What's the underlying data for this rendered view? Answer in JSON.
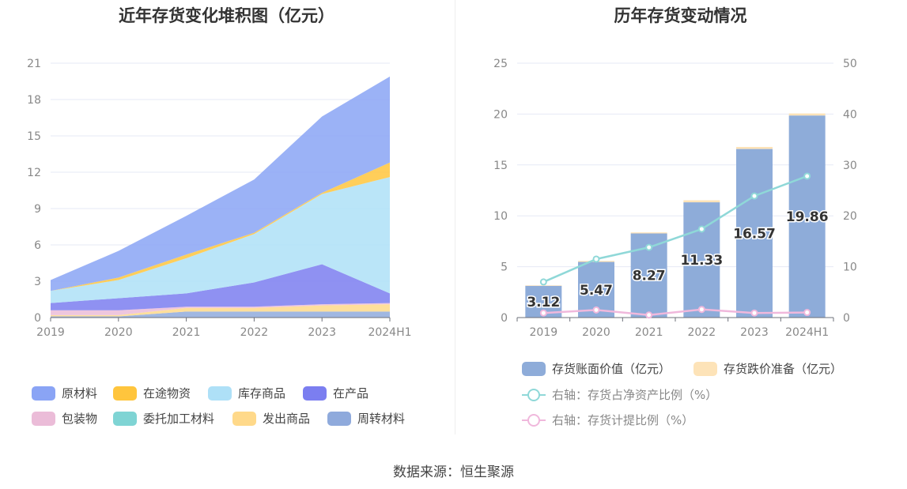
{
  "left_title": "近年存货变化堆积图（亿元）",
  "right_title": "历年存货变动情况",
  "source": "数据来源：恒生聚源",
  "chart_data": [
    {
      "type": "area",
      "stacked": true,
      "title": "近年存货变化堆积图（亿元）",
      "categories": [
        "2019",
        "2020",
        "2021",
        "2022",
        "2023",
        "2024H1"
      ],
      "y_ticks": [
        "0",
        "3",
        "6",
        "9",
        "12",
        "15",
        "18",
        "21"
      ],
      "ylim": [
        0,
        21
      ],
      "grid": true,
      "legend_placement": "bottom",
      "series": [
        {
          "name": "周转材料",
          "color": "#8faadc",
          "values": [
            0.1,
            0.1,
            0.5,
            0.5,
            0.5,
            0.5
          ]
        },
        {
          "name": "发出商品",
          "color": "#ffd98a",
          "values": [
            0.1,
            0.1,
            0.3,
            0.3,
            0.5,
            0.6
          ]
        },
        {
          "name": "委托加工材料",
          "color": "#7fd4d4",
          "values": [
            0.0,
            0.0,
            0.0,
            0.0,
            0.0,
            0.0
          ]
        },
        {
          "name": "包装物",
          "color": "#ebbcd8",
          "values": [
            0.4,
            0.4,
            0.1,
            0.1,
            0.1,
            0.1
          ]
        },
        {
          "name": "在产品",
          "color": "#7b7ef0",
          "values": [
            0.6,
            1.0,
            1.1,
            2.0,
            3.3,
            0.8
          ]
        },
        {
          "name": "库存商品",
          "color": "#aee0f7",
          "values": [
            1.0,
            1.5,
            2.9,
            4.0,
            5.8,
            9.6
          ]
        },
        {
          "name": "在途物资",
          "color": "#ffc53d",
          "values": [
            0.0,
            0.2,
            0.3,
            0.1,
            0.1,
            1.2
          ]
        },
        {
          "name": "原材料",
          "color": "#8aa4f5",
          "values": [
            0.9,
            2.2,
            3.2,
            4.4,
            6.3,
            7.1
          ]
        }
      ],
      "legend": [
        "原材料",
        "在途物资",
        "库存商品",
        "在产品",
        "包装物",
        "委托加工材料",
        "发出商品",
        "周转材料"
      ]
    },
    {
      "type": "bar",
      "stacked": true,
      "title": "历年存货变动情况",
      "categories": [
        "2019",
        "2020",
        "2021",
        "2022",
        "2023",
        "2024H1"
      ],
      "ylim": [
        0,
        25
      ],
      "y_ticks": [
        "0",
        "5",
        "10",
        "15",
        "20",
        "25"
      ],
      "y2lim": [
        0,
        50
      ],
      "y2_ticks": [
        "0",
        "10",
        "20",
        "30",
        "40",
        "50"
      ],
      "grid": true,
      "legend_placement": "bottom",
      "series": [
        {
          "name": "存货账面价值（亿元）",
          "axis": "left",
          "kind": "bar",
          "color": "#8eacd9",
          "values": [
            3.12,
            5.47,
            8.27,
            11.33,
            16.57,
            19.86
          ],
          "labels": [
            "3.12",
            "5.47",
            "8.27",
            "11.33",
            "16.57",
            "19.86"
          ]
        },
        {
          "name": "存货跌价准备（亿元）",
          "axis": "left",
          "kind": "bar",
          "color": "#fde3b8",
          "values": [
            0.05,
            0.1,
            0.1,
            0.2,
            0.2,
            0.2
          ]
        },
        {
          "name": "右轴：存货占净资产比例（%）",
          "axis": "right",
          "kind": "line",
          "color": "#8fd8d8",
          "values": [
            7.0,
            11.5,
            13.8,
            17.4,
            23.9,
            27.8
          ]
        },
        {
          "name": "右轴：存货计提比例（%）",
          "axis": "right",
          "kind": "line",
          "color": "#f0b8dc",
          "values": [
            0.9,
            1.5,
            0.5,
            1.6,
            0.9,
            1.0
          ]
        }
      ]
    }
  ]
}
